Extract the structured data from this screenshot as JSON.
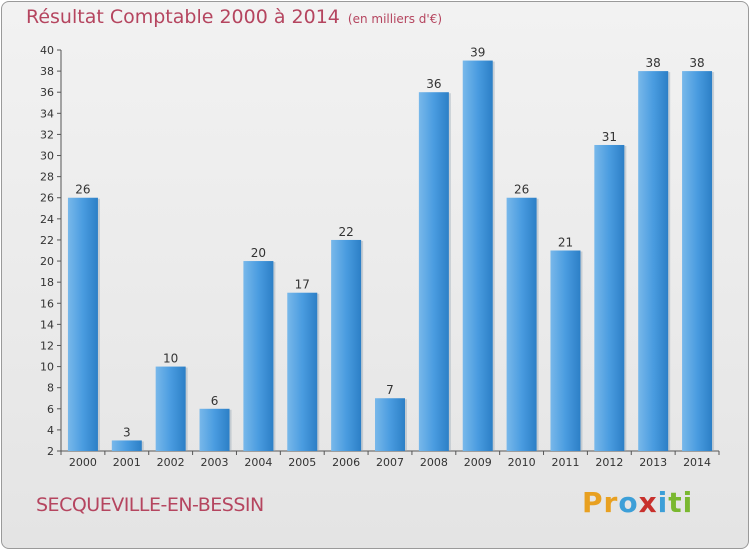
{
  "chart_data": {
    "type": "bar",
    "title": "Résultat Comptable 2000 à 2014",
    "subtitle": "(en milliers d'€)",
    "categories": [
      "2000",
      "2001",
      "2002",
      "2003",
      "2004",
      "2005",
      "2006",
      "2007",
      "2008",
      "2009",
      "2010",
      "2011",
      "2012",
      "2013",
      "2014"
    ],
    "values": [
      26,
      3,
      10,
      6,
      20,
      17,
      22,
      7,
      36,
      39,
      26,
      21,
      31,
      38,
      38
    ],
    "ylim": [
      2,
      40
    ],
    "yticks": [
      2,
      4,
      6,
      8,
      10,
      12,
      14,
      16,
      18,
      20,
      22,
      24,
      26,
      28,
      30,
      32,
      34,
      36,
      38,
      40
    ],
    "xlabel": "",
    "ylabel": "",
    "grid": false,
    "bar_color": "#3d8fd4"
  },
  "footer": {
    "commune": "SECQUEVILLE-EN-BESSIN",
    "brand": [
      "P",
      "r",
      "o",
      "x",
      "i",
      "t",
      "i"
    ],
    "brand_colors": [
      "#e8a020",
      "#e8a020",
      "#3c9fd8",
      "#c8302c",
      "#3c9fd8",
      "#7ab830",
      "#7ab830"
    ]
  }
}
